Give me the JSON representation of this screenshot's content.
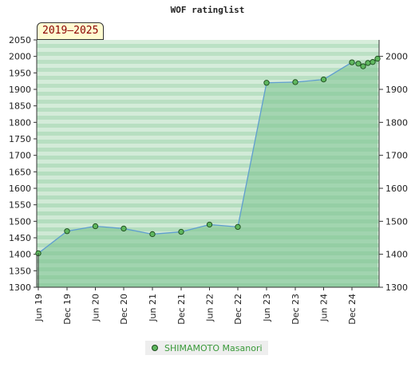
{
  "period_badge": "2019–2025",
  "chart_data": {
    "type": "area",
    "title": "WOF ratinglist",
    "xlabel": "",
    "ylabel": "",
    "ylim": [
      1300,
      2050
    ],
    "yticks": [
      1300,
      1350,
      1400,
      1450,
      1500,
      1550,
      1600,
      1650,
      1700,
      1750,
      1800,
      1850,
      1900,
      1950,
      2000,
      2050
    ],
    "yticks_right": [
      1300,
      1400,
      1500,
      1600,
      1700,
      1800,
      1900,
      2000
    ],
    "xticks": [
      "Jun 19",
      "Dec 19",
      "Jun 20",
      "Dec 20",
      "Jun 21",
      "Dec 21",
      "Jun 22",
      "Dec 22",
      "Jun 23",
      "Dec 23",
      "Jun 24",
      "Dec 24"
    ],
    "grid": true,
    "legend_position": "bottom-center",
    "colors": {
      "line": "#5f9ecf",
      "fill": "#7cc38f",
      "marker": "#5fb75f",
      "marker_edge": "#1a4a1a",
      "band_light": "#eef7ef",
      "band_dark": "#a9d9b4"
    },
    "series": [
      {
        "name": "SHIMAMOTO Masanori",
        "points": [
          [
            "Jun 19",
            1403
          ],
          [
            "Dec 19",
            1470
          ],
          [
            "Jun 20",
            1485
          ],
          [
            "Dec 20",
            1478
          ],
          [
            "Jun 21",
            1461
          ],
          [
            "Dec 21",
            1468
          ],
          [
            "Jun 22",
            1490
          ],
          [
            "Dec 22",
            1483
          ],
          [
            "Jun 23",
            1920
          ],
          [
            "Dec 23",
            1922
          ],
          [
            "Jun 24",
            1930
          ],
          [
            "Dec 24",
            1982
          ],
          [
            "Dec 24 +1",
            1978
          ],
          [
            "Dec 24 +2",
            1970
          ],
          [
            "Dec 24 +3",
            1980
          ],
          [
            "Dec 24 +4",
            1983
          ],
          [
            "Dec 24 +5",
            1993
          ]
        ]
      }
    ]
  }
}
